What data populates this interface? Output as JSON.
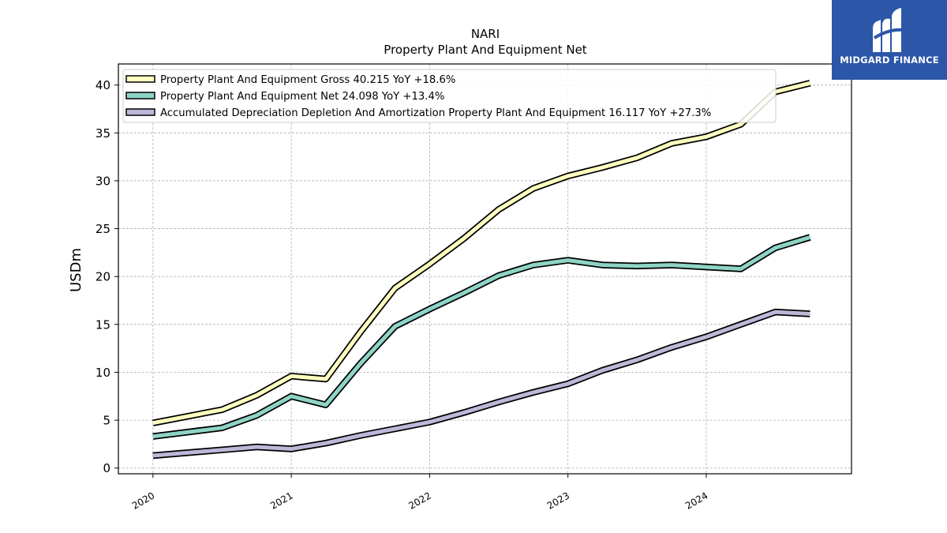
{
  "chart_data": {
    "type": "line",
    "title": "NARI",
    "subtitle": "Property Plant And Equipment Net",
    "ylabel": "USDm",
    "xlabel": "",
    "xlim": [
      2019.75,
      2025.05
    ],
    "ylim": [
      -0.6,
      42.2
    ],
    "yticks": [
      0,
      5,
      10,
      15,
      20,
      25,
      30,
      35,
      40
    ],
    "xticks": [
      2020,
      2021,
      2022,
      2023,
      2024
    ],
    "grid": true,
    "legend_position": "top-left",
    "series": [
      {
        "name": "Property Plant And Equipment Gross  40.215 YoY +18.6%",
        "color": "#ffffbf",
        "x": [
          2020.0,
          2020.5,
          2020.75,
          2021.0,
          2021.25,
          2021.5,
          2021.75,
          2022.0,
          2022.25,
          2022.5,
          2022.75,
          2023.0,
          2023.25,
          2023.5,
          2023.75,
          2024.0,
          2024.25,
          2024.5,
          2024.75
        ],
        "y": [
          4.7,
          6.1,
          7.6,
          9.6,
          9.3,
          14.2,
          18.8,
          21.3,
          24.0,
          27.0,
          29.2,
          30.5,
          31.4,
          32.4,
          33.9,
          34.6,
          35.9,
          39.3,
          40.2
        ]
      },
      {
        "name": "Property Plant And Equipment Net  24.098 YoY +13.4%",
        "color": "#8ed4c6",
        "x": [
          2020.0,
          2020.5,
          2020.75,
          2021.0,
          2021.25,
          2021.5,
          2021.75,
          2022.0,
          2022.25,
          2022.5,
          2022.75,
          2023.0,
          2023.25,
          2023.5,
          2023.75,
          2024.0,
          2024.25,
          2024.5,
          2024.75
        ],
        "y": [
          3.3,
          4.2,
          5.5,
          7.5,
          6.6,
          10.9,
          14.8,
          16.6,
          18.3,
          20.1,
          21.2,
          21.7,
          21.2,
          21.1,
          21.2,
          21.0,
          20.8,
          23.0,
          24.1
        ]
      },
      {
        "name": "Accumulated Depreciation Depletion And Amortization Property Plant And Equipment  16.117 YoY +27.3%",
        "color": "#bcb8d8",
        "x": [
          2020.0,
          2020.5,
          2020.75,
          2021.0,
          2021.25,
          2021.5,
          2021.75,
          2022.0,
          2022.25,
          2022.5,
          2022.75,
          2023.0,
          2023.25,
          2023.5,
          2023.75,
          2024.0,
          2024.25,
          2024.5,
          2024.75
        ],
        "y": [
          1.3,
          1.9,
          2.2,
          2.0,
          2.6,
          3.4,
          4.1,
          4.8,
          5.8,
          6.9,
          7.9,
          8.8,
          10.2,
          11.3,
          12.6,
          13.7,
          15.0,
          16.3,
          16.1
        ]
      }
    ]
  },
  "logo": {
    "text": "MIDGARD FINANCE",
    "background": "#2c56a8"
  }
}
